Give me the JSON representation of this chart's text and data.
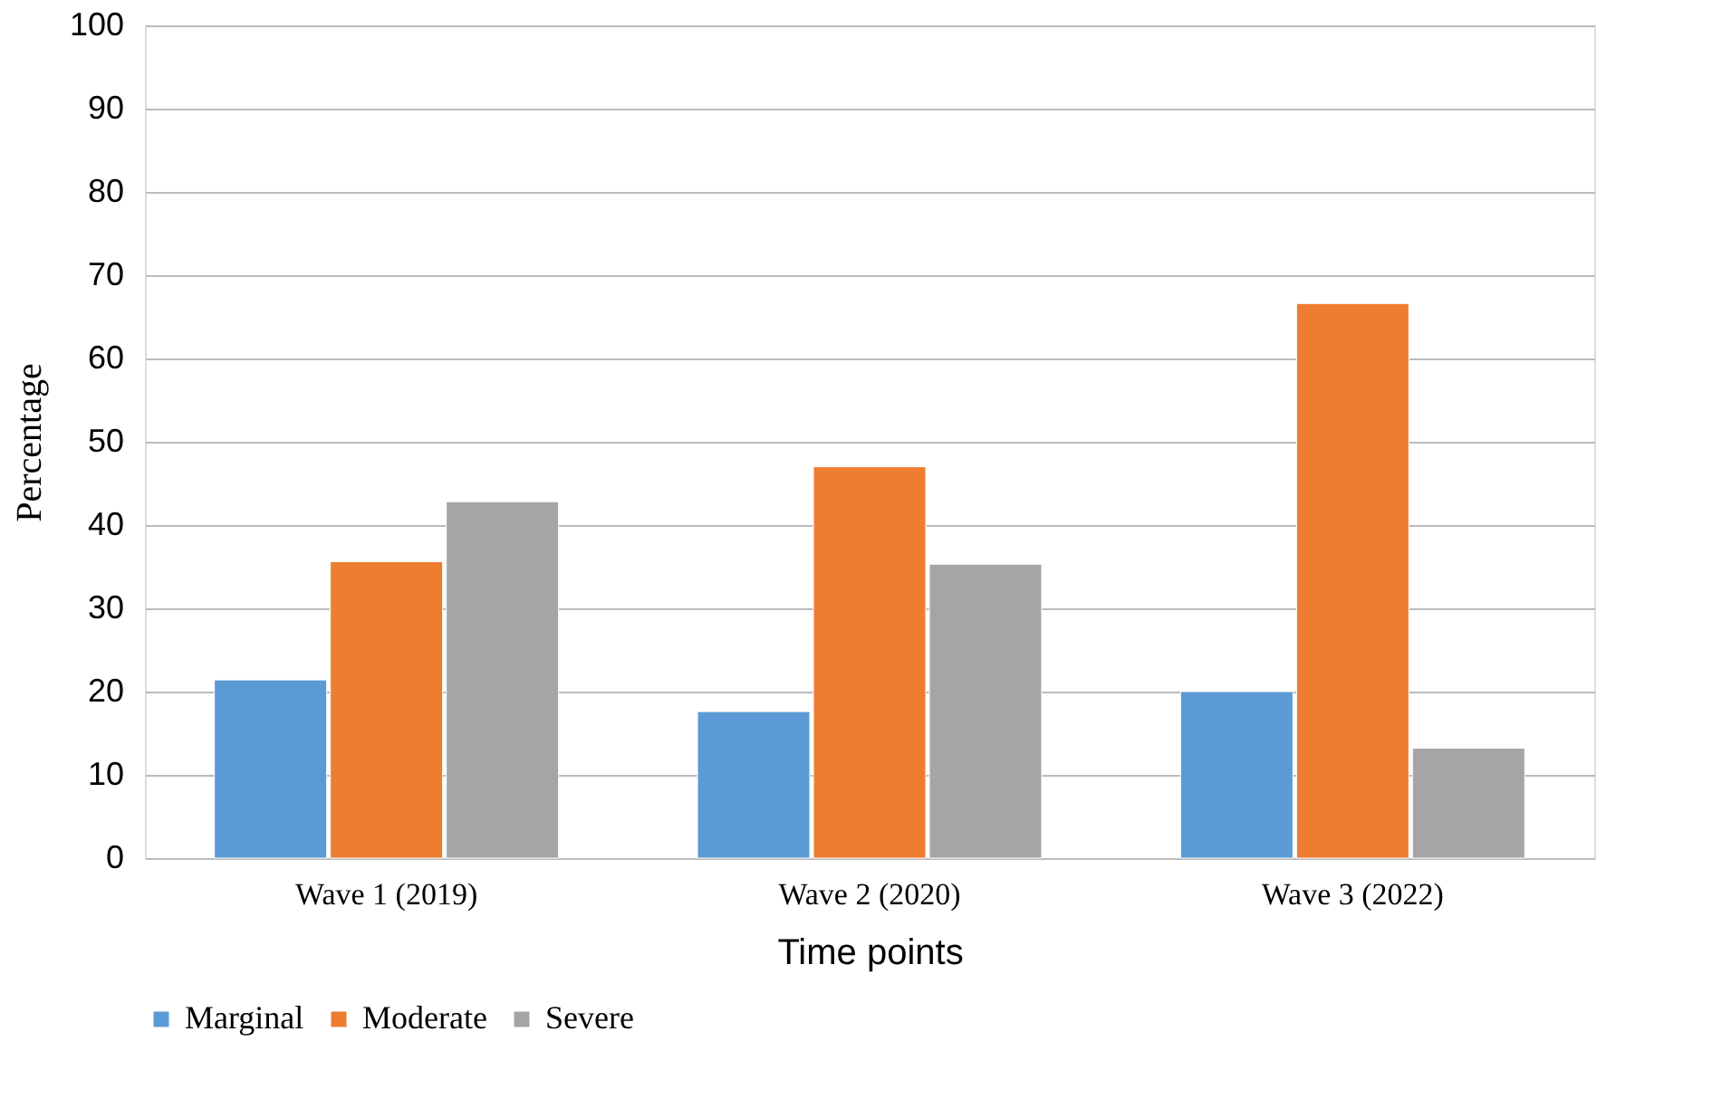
{
  "chart_data": {
    "type": "bar",
    "xlabel": "Time points",
    "ylabel": "Percentage",
    "categories": [
      "Wave 1 (2019)",
      "Wave 2 (2020)",
      "Wave 3 (2022)"
    ],
    "series": [
      {
        "name": "Marginal",
        "color": "#5b9bd5",
        "values": [
          21.4,
          17.6,
          20.0
        ]
      },
      {
        "name": "Moderate",
        "color": "#ed7d31",
        "values": [
          35.6,
          47.0,
          66.6
        ]
      },
      {
        "name": "Severe",
        "color": "#a5a5a5",
        "values": [
          42.8,
          35.3,
          13.2
        ]
      }
    ],
    "ylim": [
      0,
      100
    ],
    "yticks": [
      0,
      10,
      20,
      30,
      40,
      50,
      60,
      70,
      80,
      90,
      100
    ],
    "grid": "y",
    "legend": "bottom"
  }
}
